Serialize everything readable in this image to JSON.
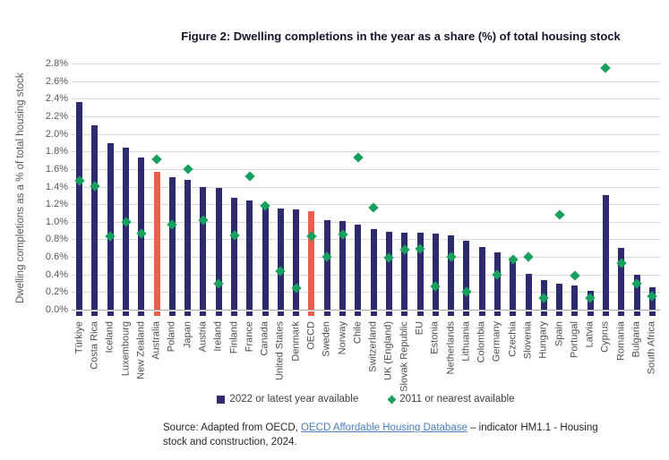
{
  "figure": {
    "legend": [
      {
        "label": "2022 or latest year available",
        "marker": "navy-square"
      },
      {
        "label": "2011 or nearest available",
        "marker": "green-diamond"
      }
    ],
    "source": {
      "prefix": "Source: Adapted from OECD, ",
      "link_text": "OECD Affordable Housing Database",
      "suffix": " – indicator HM1.1 - Housing stock and construction, 2024."
    },
    "colors": {
      "bar": "#2d2a6e",
      "bar_highlight": "#ea5f4d",
      "marker": "#17a05e",
      "gridline": "#d9d9d9",
      "axis_baseline": "#a9a9a9",
      "title_text": "#14142b",
      "tick_text": "#595959",
      "link": "#4a7ebb"
    }
  },
  "chart_data": {
    "type": "bar",
    "title": "Figure 2: Dwelling completions in the year as a share (%) of total housing stock",
    "xlabel": "",
    "ylabel": "Dwelling completions as a % of total housing stock",
    "ylim": [
      0.0,
      2.8
    ],
    "ytick_step": 0.2,
    "ytick_format": "percent-one-decimal",
    "grid": "horizontal",
    "legend_position": "bottom-center",
    "categories": [
      "Türkiye",
      "Costa Rica",
      "Iceland",
      "Luxembourg",
      "New Zealand",
      "Australia",
      "Poland",
      "Japan",
      "Austria",
      "Ireland",
      "Finland",
      "France",
      "Canada",
      "United States",
      "Denmark",
      "OECD",
      "Sweden",
      "Norway",
      "Chile",
      "Switzerland",
      "UK (England)",
      "Slovak Republic",
      "EU",
      "Estonia",
      "Netherlands",
      "Lithuania",
      "Colombia",
      "Germany",
      "Czechia",
      "Slovenia",
      "Hungary",
      "Spain",
      "Portugal",
      "Latvia",
      "Cyprus",
      "Romania",
      "Bulgaria",
      "South Africa"
    ],
    "highlighted_categories": [
      "Australia",
      "OECD"
    ],
    "series": [
      {
        "name": "2022 or latest year available",
        "render": "bar",
        "values": [
          2.36,
          2.1,
          1.89,
          1.84,
          1.73,
          1.57,
          1.51,
          1.48,
          1.4,
          1.38,
          1.27,
          1.24,
          1.18,
          1.15,
          1.14,
          1.12,
          1.02,
          1.01,
          0.97,
          0.92,
          0.89,
          0.88,
          0.88,
          0.87,
          0.85,
          0.78,
          0.71,
          0.65,
          0.59,
          0.41,
          0.34,
          0.3,
          0.27,
          0.21,
          1.3,
          0.7,
          0.4,
          0.25
        ]
      },
      {
        "name": "2011 or nearest available",
        "render": "diamond-marker",
        "values": [
          1.47,
          1.41,
          0.84,
          1.0,
          0.87,
          1.71,
          0.97,
          1.6,
          1.02,
          0.3,
          0.85,
          1.52,
          1.18,
          0.44,
          0.24,
          0.84,
          0.6,
          0.86,
          1.73,
          1.16,
          0.59,
          0.68,
          0.69,
          0.26,
          0.6,
          0.2,
          null,
          0.4,
          0.57,
          0.6,
          0.13,
          1.08,
          0.39,
          0.13,
          2.75,
          0.53,
          0.3,
          0.15
        ]
      }
    ]
  }
}
